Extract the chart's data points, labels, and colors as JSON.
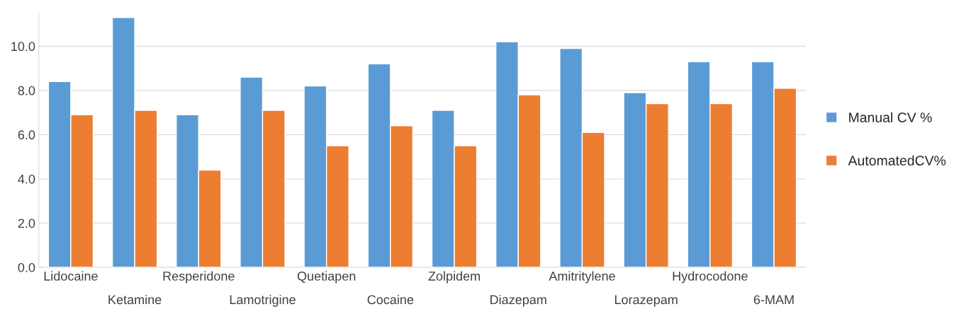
{
  "chart_data": {
    "type": "bar",
    "categories": [
      "Lidocaine",
      "Ketamine",
      "Resperidone",
      "Lamotrigine",
      "Quetiapen",
      "Cocaine",
      "Zolpidem",
      "Diazepam",
      "Amitritylene",
      "Lorazepam",
      "Hydrocodone",
      "6-MAM"
    ],
    "series": [
      {
        "name": "Manual CV %",
        "color": "#5b9bd5",
        "values": [
          8.4,
          11.3,
          6.9,
          8.6,
          8.2,
          9.2,
          7.1,
          10.2,
          9.9,
          7.9,
          9.3,
          9.3
        ]
      },
      {
        "name": "AutomatedCV%",
        "color": "#ed7d31",
        "values": [
          6.9,
          7.1,
          4.4,
          7.1,
          5.5,
          6.4,
          5.5,
          7.8,
          6.1,
          7.4,
          7.4,
          8.1
        ]
      }
    ],
    "ylim": [
      0,
      11.5
    ],
    "yticks": [
      {
        "value": 0,
        "label": "0.0"
      },
      {
        "value": 2,
        "label": "2.0"
      },
      {
        "value": 4,
        "label": "4.0"
      },
      {
        "value": 6,
        "label": "6.0"
      },
      {
        "value": 8,
        "label": "8.0"
      },
      {
        "value": 10,
        "label": "10.0"
      }
    ],
    "grid": "y",
    "legend": "right"
  }
}
